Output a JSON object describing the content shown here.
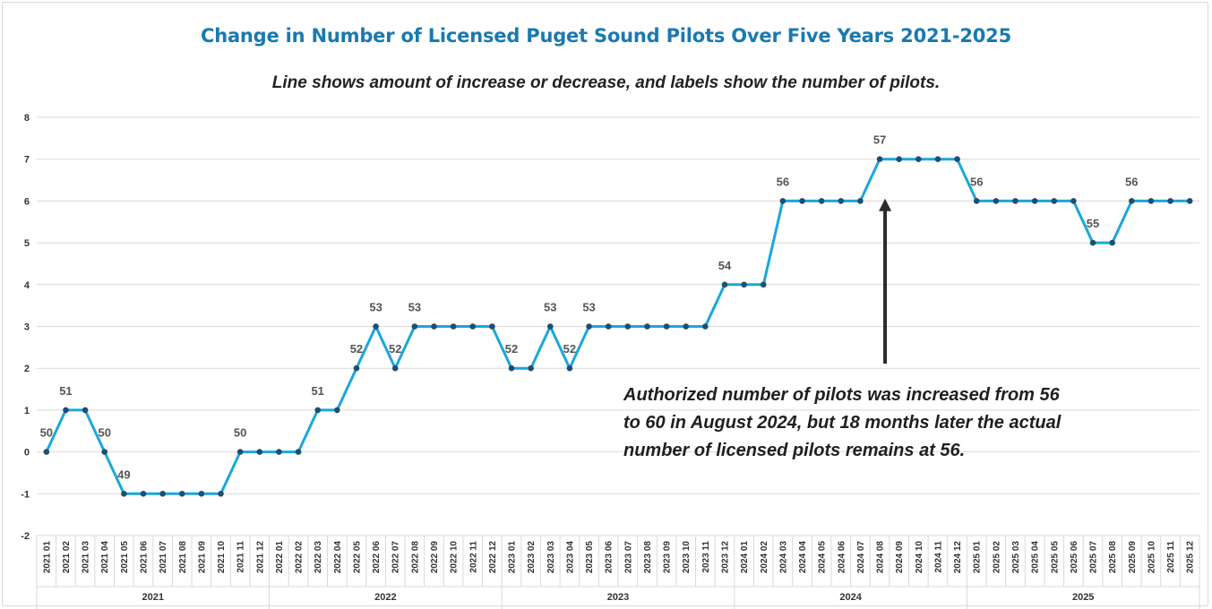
{
  "colors": {
    "title": "#1a79b0",
    "line": "#1aa7dc",
    "marker": "#1f4e6f",
    "arrow": "#2b2b2b",
    "grid": "#d9d9d9"
  },
  "chart_data": {
    "type": "line",
    "title": "Change in Number of Licensed Puget Sound Pilots Over Five Years 2021-2025",
    "subtitle": "Line shows amount of increase or decrease, and labels show the number of pilots.",
    "ylim": [
      -2,
      8
    ],
    "yticks": [
      "8",
      "7",
      "6",
      "5",
      "4",
      "3",
      "2",
      "1",
      "0",
      "-1",
      "-2"
    ],
    "ytick_values": [
      8,
      7,
      6,
      5,
      4,
      3,
      2,
      1,
      0,
      -1,
      -2
    ],
    "grid": true,
    "legend": "none",
    "x": [
      "2021 01",
      "2021 02",
      "2021 03",
      "2021 04",
      "2021 05",
      "2021 06",
      "2021 07",
      "2021 08",
      "2021 09",
      "2021 10",
      "2021 11",
      "2021 12",
      "2022 01",
      "2022 02",
      "2022 03",
      "2022 04",
      "2022 05",
      "2022 06",
      "2022 07",
      "2022 08",
      "2022 09",
      "2022 10",
      "2022 11",
      "2022 12",
      "2023 01",
      "2023 02",
      "2023 03",
      "2023 04",
      "2023 05",
      "2023 06",
      "2023 07",
      "2023 08",
      "2023 09",
      "2023 10",
      "2023 11",
      "2023 12",
      "2024 01",
      "2024 02",
      "2024 03",
      "2024 04",
      "2024 05",
      "2024 06",
      "2024 07",
      "2024 08",
      "2024 09",
      "2024 10",
      "2024 11",
      "2024 12",
      "2025 01",
      "2025 02",
      "2025 03",
      "2025 04",
      "2025 05",
      "2025 06",
      "2025 07",
      "2025 08",
      "2025 09",
      "2025 10",
      "2025 11",
      "2025 12"
    ],
    "year_groups": [
      "2021",
      "2022",
      "2023",
      "2024",
      "2025"
    ],
    "values": [
      0,
      1,
      1,
      0,
      -1,
      -1,
      -1,
      -1,
      -1,
      -1,
      0,
      0,
      0,
      0,
      1,
      1,
      2,
      3,
      2,
      3,
      3,
      3,
      3,
      3,
      2,
      2,
      3,
      2,
      3,
      3,
      3,
      3,
      3,
      3,
      3,
      4,
      4,
      4,
      6,
      6,
      6,
      6,
      6,
      7,
      7,
      7,
      7,
      7,
      6,
      6,
      6,
      6,
      6,
      6,
      5,
      5,
      6,
      6,
      6,
      6
    ],
    "data_labels": [
      {
        "index": 0,
        "text": "50",
        "pos": "above"
      },
      {
        "index": 1,
        "text": "51",
        "pos": "above"
      },
      {
        "index": 3,
        "text": "50",
        "pos": "above"
      },
      {
        "index": 4,
        "text": "49",
        "pos": "above"
      },
      {
        "index": 10,
        "text": "50",
        "pos": "above"
      },
      {
        "index": 14,
        "text": "51",
        "pos": "above"
      },
      {
        "index": 16,
        "text": "52",
        "pos": "above"
      },
      {
        "index": 17,
        "text": "53",
        "pos": "above"
      },
      {
        "index": 18,
        "text": "52",
        "pos": "above"
      },
      {
        "index": 19,
        "text": "53",
        "pos": "above"
      },
      {
        "index": 24,
        "text": "52",
        "pos": "above"
      },
      {
        "index": 26,
        "text": "53",
        "pos": "above"
      },
      {
        "index": 27,
        "text": "52",
        "pos": "above"
      },
      {
        "index": 28,
        "text": "53",
        "pos": "above"
      },
      {
        "index": 35,
        "text": "54",
        "pos": "above"
      },
      {
        "index": 38,
        "text": "56",
        "pos": "above"
      },
      {
        "index": 43,
        "text": "57",
        "pos": "above"
      },
      {
        "index": 48,
        "text": "56",
        "pos": "above"
      },
      {
        "index": 54,
        "text": "55",
        "pos": "above"
      },
      {
        "index": 56,
        "text": "56",
        "pos": "above"
      }
    ],
    "annotation": {
      "text": "Authorized number of pilots was increased from 56\nto 60 in August 2024, but 18 months later the actual\nnumber of licensed pilots remains at 56.",
      "arrow_target_index": 43
    }
  }
}
